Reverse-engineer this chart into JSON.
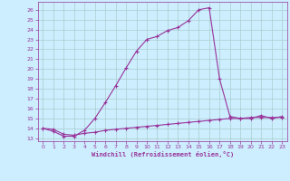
{
  "xlabel": "Windchill (Refroidissement éolien,°C)",
  "bg_color": "#cceeff",
  "grid_color": "#aacccc",
  "line_color": "#993399",
  "x_ticks": [
    0,
    1,
    2,
    3,
    4,
    5,
    6,
    7,
    8,
    9,
    10,
    11,
    12,
    13,
    14,
    15,
    16,
    17,
    18,
    19,
    20,
    21,
    22,
    23
  ],
  "y_ticks": [
    13,
    14,
    15,
    16,
    17,
    18,
    19,
    20,
    21,
    22,
    23,
    24,
    25,
    26
  ],
  "ylim": [
    12.7,
    26.8
  ],
  "xlim": [
    -0.5,
    23.5
  ],
  "line1_x": [
    0,
    1,
    2,
    3,
    4,
    5,
    6,
    7,
    8,
    9,
    10,
    11,
    12,
    13,
    14,
    15,
    16,
    17,
    18,
    19,
    20,
    21,
    22,
    23
  ],
  "line1_y": [
    14.0,
    13.7,
    13.2,
    13.2,
    13.8,
    15.0,
    16.6,
    18.3,
    20.1,
    21.8,
    23.0,
    23.3,
    23.9,
    24.2,
    24.9,
    26.0,
    26.2,
    19.0,
    15.2,
    15.0,
    15.0,
    15.3,
    15.0,
    15.2
  ],
  "line2_x": [
    0,
    1,
    2,
    3,
    4,
    5,
    6,
    7,
    8,
    9,
    10,
    11,
    12,
    13,
    14,
    15,
    16,
    17,
    18,
    19,
    20,
    21,
    22,
    23
  ],
  "line2_y": [
    14.0,
    13.9,
    13.4,
    13.3,
    13.5,
    13.6,
    13.8,
    13.9,
    14.0,
    14.1,
    14.2,
    14.3,
    14.4,
    14.5,
    14.6,
    14.7,
    14.8,
    14.9,
    15.0,
    15.0,
    15.1,
    15.1,
    15.1,
    15.1
  ]
}
